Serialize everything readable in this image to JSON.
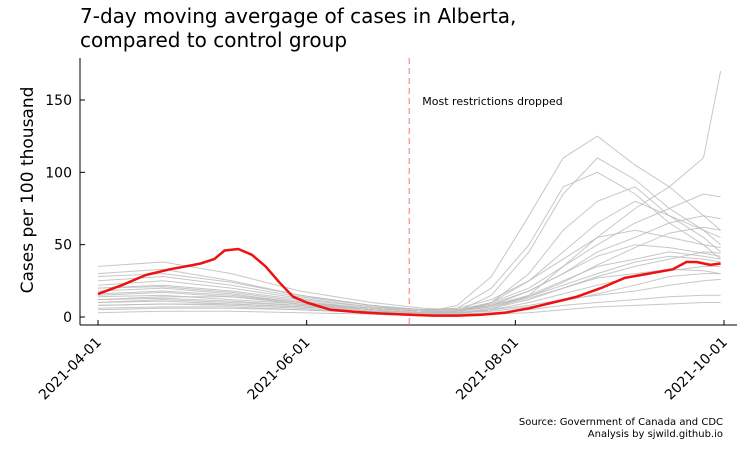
{
  "chart_data": {
    "type": "line",
    "title_lines": [
      "7-day moving avergage of cases in Alberta,",
      "compared to control group"
    ],
    "xlabel": "",
    "ylabel": "Cases per 100 thousand",
    "x_range": [
      "2021-04-01",
      "2021-10-01"
    ],
    "ylim": [
      -5,
      180
    ],
    "x_ticks": [
      "2021-04-01",
      "2021-06-01",
      "2021-08-01",
      "2021-10-01"
    ],
    "y_ticks": [
      0,
      50,
      100,
      150
    ],
    "grid": false,
    "legend": "none",
    "annotation": {
      "text": "Most restrictions dropped",
      "date": "2021-07-01",
      "line_color": "#f8a1a1"
    },
    "source_lines": [
      "Source: Government of Canada and CDC",
      "Analysis by sjwild.github.io"
    ],
    "alberta": {
      "color": "#ee1111",
      "x": [
        "2021-04-01",
        "2021-04-08",
        "2021-04-15",
        "2021-04-22",
        "2021-04-29",
        "2021-05-01",
        "2021-05-05",
        "2021-05-08",
        "2021-05-12",
        "2021-05-16",
        "2021-05-20",
        "2021-05-24",
        "2021-05-28",
        "2021-06-01",
        "2021-06-08",
        "2021-06-15",
        "2021-06-22",
        "2021-07-01",
        "2021-07-08",
        "2021-07-15",
        "2021-07-22",
        "2021-07-29",
        "2021-08-05",
        "2021-08-12",
        "2021-08-19",
        "2021-08-26",
        "2021-09-02",
        "2021-09-09",
        "2021-09-16",
        "2021-09-20",
        "2021-09-23",
        "2021-09-27",
        "2021-09-30"
      ],
      "y": [
        16,
        22,
        29,
        33,
        36,
        37,
        40,
        46,
        47,
        43,
        35,
        24,
        14,
        10,
        5,
        3.5,
        2.5,
        1.5,
        1,
        1,
        1.5,
        3,
        6,
        10,
        14,
        20,
        27,
        30,
        33,
        38,
        38,
        36,
        37
      ]
    },
    "control_color": "#bdbdbd",
    "control": [
      {
        "x": [
          "2021-04-01",
          "2021-04-20",
          "2021-05-10",
          "2021-05-30",
          "2021-06-20",
          "2021-07-05",
          "2021-07-15",
          "2021-07-25",
          "2021-08-05",
          "2021-08-15",
          "2021-08-25",
          "2021-09-05",
          "2021-09-15",
          "2021-09-25",
          "2021-09-30"
        ],
        "y": [
          10,
          12,
          10,
          8,
          4,
          2,
          4,
          15,
          45,
          85,
          110,
          95,
          75,
          60,
          50
        ]
      },
      {
        "x": [
          "2021-04-01",
          "2021-04-20",
          "2021-05-10",
          "2021-05-30",
          "2021-06-20",
          "2021-07-05",
          "2021-07-15",
          "2021-07-25",
          "2021-08-05",
          "2021-08-15",
          "2021-08-25",
          "2021-09-05",
          "2021-09-15",
          "2021-09-25",
          "2021-09-30"
        ],
        "y": [
          14,
          15,
          12,
          9,
          5,
          3,
          8,
          28,
          70,
          110,
          125,
          105,
          90,
          70,
          60
        ]
      },
      {
        "x": [
          "2021-04-01",
          "2021-04-20",
          "2021-05-10",
          "2021-05-30",
          "2021-06-20",
          "2021-07-05",
          "2021-07-15",
          "2021-07-25",
          "2021-08-05",
          "2021-08-15",
          "2021-08-25",
          "2021-09-05",
          "2021-09-15",
          "2021-09-25",
          "2021-09-30"
        ],
        "y": [
          8,
          9,
          8,
          6,
          3,
          2,
          3,
          10,
          30,
          60,
          80,
          90,
          70,
          55,
          45
        ]
      },
      {
        "x": [
          "2021-04-01",
          "2021-04-20",
          "2021-05-10",
          "2021-05-30",
          "2021-06-20",
          "2021-07-05",
          "2021-07-15",
          "2021-07-25",
          "2021-08-05",
          "2021-08-15",
          "2021-08-25",
          "2021-09-05",
          "2021-09-15",
          "2021-09-25",
          "2021-09-30"
        ],
        "y": [
          5,
          6,
          6,
          5,
          3,
          2,
          2,
          5,
          15,
          35,
          55,
          75,
          90,
          110,
          170
        ]
      },
      {
        "x": [
          "2021-04-01",
          "2021-04-20",
          "2021-05-10",
          "2021-05-30",
          "2021-06-20",
          "2021-07-05",
          "2021-07-15",
          "2021-07-25",
          "2021-08-05",
          "2021-08-15",
          "2021-08-25",
          "2021-09-05",
          "2021-09-15",
          "2021-09-25",
          "2021-09-30"
        ],
        "y": [
          20,
          22,
          18,
          12,
          7,
          5,
          5,
          10,
          20,
          35,
          50,
          65,
          75,
          85,
          83
        ]
      },
      {
        "x": [
          "2021-04-01",
          "2021-04-20",
          "2021-05-10",
          "2021-05-30",
          "2021-06-20",
          "2021-07-05",
          "2021-07-15",
          "2021-07-25",
          "2021-08-05",
          "2021-08-15",
          "2021-08-25",
          "2021-09-05",
          "2021-09-15",
          "2021-09-25",
          "2021-09-30"
        ],
        "y": [
          12,
          14,
          14,
          10,
          6,
          4,
          4,
          8,
          18,
          30,
          45,
          55,
          65,
          70,
          68
        ]
      },
      {
        "x": [
          "2021-04-01",
          "2021-04-20",
          "2021-05-10",
          "2021-05-30",
          "2021-06-20",
          "2021-07-05",
          "2021-07-15",
          "2021-07-25",
          "2021-08-05",
          "2021-08-15",
          "2021-08-25",
          "2021-09-05",
          "2021-09-15",
          "2021-09-25",
          "2021-09-30"
        ],
        "y": [
          25,
          28,
          22,
          14,
          8,
          5,
          6,
          12,
          25,
          40,
          55,
          60,
          55,
          50,
          48
        ]
      },
      {
        "x": [
          "2021-04-01",
          "2021-04-20",
          "2021-05-10",
          "2021-05-30",
          "2021-06-20",
          "2021-07-05",
          "2021-07-15",
          "2021-07-25",
          "2021-08-05",
          "2021-08-15",
          "2021-08-25",
          "2021-09-05",
          "2021-09-15",
          "2021-09-25",
          "2021-09-30"
        ],
        "y": [
          30,
          33,
          25,
          15,
          8,
          5,
          5,
          8,
          15,
          25,
          35,
          40,
          45,
          42,
          40
        ]
      },
      {
        "x": [
          "2021-04-01",
          "2021-04-20",
          "2021-05-10",
          "2021-05-30",
          "2021-06-20",
          "2021-07-05",
          "2021-07-15",
          "2021-07-25",
          "2021-08-05",
          "2021-08-15",
          "2021-08-25",
          "2021-09-05",
          "2021-09-15",
          "2021-09-25",
          "2021-09-30"
        ],
        "y": [
          35,
          38,
          30,
          18,
          10,
          6,
          5,
          8,
          14,
          22,
          30,
          38,
          42,
          40,
          38
        ]
      },
      {
        "x": [
          "2021-04-01",
          "2021-04-20",
          "2021-05-10",
          "2021-05-30",
          "2021-06-20",
          "2021-07-05",
          "2021-07-15",
          "2021-07-25",
          "2021-08-05",
          "2021-08-15",
          "2021-08-25",
          "2021-09-05",
          "2021-09-15",
          "2021-09-25",
          "2021-09-30"
        ],
        "y": [
          18,
          20,
          16,
          10,
          5,
          3,
          3,
          6,
          12,
          20,
          28,
          35,
          40,
          45,
          44
        ]
      },
      {
        "x": [
          "2021-04-01",
          "2021-04-20",
          "2021-05-10",
          "2021-05-30",
          "2021-06-20",
          "2021-07-05",
          "2021-07-15",
          "2021-07-25",
          "2021-08-05",
          "2021-08-15",
          "2021-08-25",
          "2021-09-05",
          "2021-09-15",
          "2021-09-25",
          "2021-09-30"
        ],
        "y": [
          15,
          17,
          14,
          9,
          5,
          3,
          3,
          5,
          10,
          16,
          22,
          28,
          32,
          35,
          35
        ]
      },
      {
        "x": [
          "2021-04-01",
          "2021-04-20",
          "2021-05-10",
          "2021-05-30",
          "2021-06-20",
          "2021-07-05",
          "2021-07-15",
          "2021-07-25",
          "2021-08-05",
          "2021-08-15",
          "2021-08-25",
          "2021-09-05",
          "2021-09-15",
          "2021-09-25",
          "2021-09-30"
        ],
        "y": [
          22,
          25,
          20,
          13,
          7,
          4,
          4,
          7,
          13,
          20,
          27,
          30,
          33,
          32,
          30
        ]
      },
      {
        "x": [
          "2021-04-01",
          "2021-04-20",
          "2021-05-10",
          "2021-05-30",
          "2021-06-20",
          "2021-07-05",
          "2021-07-15",
          "2021-07-25",
          "2021-08-05",
          "2021-08-15",
          "2021-08-25",
          "2021-09-05",
          "2021-09-15",
          "2021-09-25",
          "2021-09-30"
        ],
        "y": [
          10,
          11,
          9,
          7,
          4,
          3,
          3,
          5,
          8,
          12,
          15,
          18,
          22,
          25,
          26
        ]
      },
      {
        "x": [
          "2021-04-01",
          "2021-04-20",
          "2021-05-10",
          "2021-05-30",
          "2021-06-20",
          "2021-07-05",
          "2021-07-15",
          "2021-07-25",
          "2021-08-05",
          "2021-08-15",
          "2021-08-25",
          "2021-09-05",
          "2021-09-15",
          "2021-09-25",
          "2021-09-30"
        ],
        "y": [
          6,
          7,
          7,
          5,
          3,
          2,
          2,
          3,
          5,
          8,
          10,
          12,
          14,
          15,
          15
        ]
      },
      {
        "x": [
          "2021-04-01",
          "2021-04-20",
          "2021-05-10",
          "2021-05-30",
          "2021-06-20",
          "2021-07-05",
          "2021-07-15",
          "2021-07-25",
          "2021-08-05",
          "2021-08-15",
          "2021-08-25",
          "2021-09-05",
          "2021-09-15",
          "2021-09-25",
          "2021-09-30"
        ],
        "y": [
          3,
          4,
          4,
          3,
          2,
          1,
          1,
          2,
          3,
          5,
          7,
          8,
          9,
          10,
          10
        ]
      },
      {
        "x": [
          "2021-04-01",
          "2021-04-20",
          "2021-05-10",
          "2021-05-30",
          "2021-06-20",
          "2021-07-05",
          "2021-07-15",
          "2021-07-25",
          "2021-08-05",
          "2021-08-15",
          "2021-08-25",
          "2021-09-05",
          "2021-09-15",
          "2021-09-25",
          "2021-09-30"
        ],
        "y": [
          12,
          13,
          11,
          8,
          5,
          3,
          4,
          10,
          25,
          45,
          65,
          80,
          70,
          60,
          55
        ]
      },
      {
        "x": [
          "2021-04-01",
          "2021-04-20",
          "2021-05-10",
          "2021-05-30",
          "2021-06-20",
          "2021-07-05",
          "2021-07-15",
          "2021-07-25",
          "2021-08-05",
          "2021-08-15",
          "2021-08-25",
          "2021-09-05",
          "2021-09-15",
          "2021-09-25",
          "2021-09-30"
        ],
        "y": [
          28,
          30,
          24,
          15,
          8,
          5,
          5,
          9,
          18,
          30,
          42,
          50,
          48,
          44,
          42
        ]
      },
      {
        "x": [
          "2021-04-01",
          "2021-04-20",
          "2021-05-10",
          "2021-05-30",
          "2021-06-20",
          "2021-07-05",
          "2021-07-15",
          "2021-07-25",
          "2021-08-05",
          "2021-08-15",
          "2021-08-25",
          "2021-09-05",
          "2021-09-15",
          "2021-09-25",
          "2021-09-30"
        ],
        "y": [
          16,
          18,
          15,
          10,
          6,
          4,
          4,
          7,
          14,
          24,
          36,
          48,
          58,
          62,
          60
        ]
      },
      {
        "x": [
          "2021-04-01",
          "2021-04-20",
          "2021-05-10",
          "2021-05-30",
          "2021-06-20",
          "2021-07-05",
          "2021-07-15",
          "2021-07-25",
          "2021-08-05",
          "2021-08-15",
          "2021-08-25",
          "2021-09-05",
          "2021-09-15",
          "2021-09-25",
          "2021-09-30"
        ],
        "y": [
          8,
          9,
          9,
          7,
          4,
          3,
          3,
          4,
          7,
          11,
          16,
          22,
          28,
          30,
          30
        ]
      },
      {
        "x": [
          "2021-04-01",
          "2021-04-20",
          "2021-05-10",
          "2021-05-30",
          "2021-06-20",
          "2021-07-05",
          "2021-07-15",
          "2021-07-25",
          "2021-08-05",
          "2021-08-15",
          "2021-08-25",
          "2021-09-05",
          "2021-09-15",
          "2021-09-25",
          "2021-09-30"
        ],
        "y": [
          20,
          21,
          17,
          11,
          6,
          4,
          6,
          20,
          50,
          90,
          100,
          85,
          65,
          50,
          40
        ]
      }
    ]
  }
}
